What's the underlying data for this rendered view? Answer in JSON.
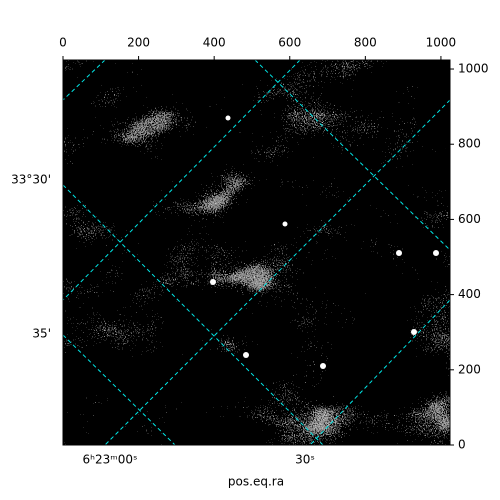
{
  "chart_data": {
    "type": "image",
    "xlabel": "pos.eq.ra",
    "xlim": [
      0,
      1024
    ],
    "xticks": [
      0,
      200,
      400,
      600,
      800,
      1000
    ],
    "ylim": [
      0,
      1024
    ],
    "yticks": [
      0,
      200,
      400,
      600,
      800,
      1000
    ],
    "dec_ticks": [
      "33°30'",
      "35'"
    ],
    "ra_ticks": [
      "6ʰ23ᵐ00ˢ",
      "30ˢ"
    ],
    "grid_color": "#00e5e5"
  }
}
